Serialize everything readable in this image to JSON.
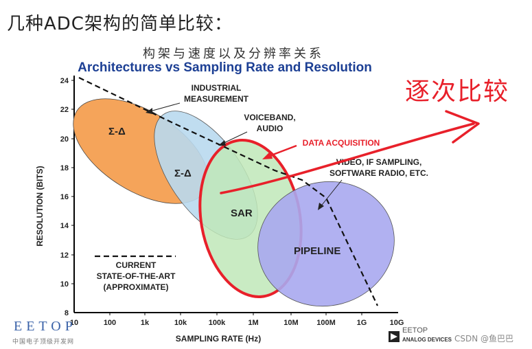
{
  "heading": "几种ADC架构的简单比较：",
  "subtitle_zh": "构架与速度以及分辨率关系",
  "title_en": "Architectures vs Sampling Rate and Resolution",
  "annotation_zh": "逐次比较",
  "axes": {
    "y_label": "RESOLUTION (BITS)",
    "x_label": "SAMPLING RATE (Hz)",
    "y_ticks": [
      "8",
      "10",
      "12",
      "14",
      "16",
      "18",
      "20",
      "22",
      "24"
    ],
    "x_ticks": [
      "10",
      "100",
      "1k",
      "10k",
      "100k",
      "1M",
      "10M",
      "100M",
      "1G",
      "10G"
    ]
  },
  "regions": {
    "sigma_delta_1": "Σ-Δ",
    "sigma_delta_2": "Σ-Δ",
    "sar": "SAR",
    "pipeline": "PIPELINE"
  },
  "callouts": {
    "industrial": [
      "INDUSTRIAL",
      "MEASUREMENT"
    ],
    "voiceband": [
      "VOICEBAND,",
      "AUDIO"
    ],
    "data_acq": "DATA ACQUISITION",
    "video": [
      "VIDEO, IF SAMPLING,",
      "SOFTWARE RADIO, ETC."
    ]
  },
  "legend": [
    "CURRENT",
    "STATE-OF-THE-ART",
    "(APPROXIMATE)"
  ],
  "logos": {
    "eetop": "EETOP",
    "eetop_sub": "中国电子顶级开发网",
    "eetop2": "EETOP",
    "adi": "ANALOG DEVICES"
  },
  "watermark": "CSDN @鱼巴巴",
  "colors": {
    "title_blue": "#1c3f94",
    "sigma1": "#f5a45a",
    "sigma2": "#b9d9ee",
    "sar": "#bfe8b8",
    "pipeline": "#a9a8f0",
    "red": "#e8202a"
  }
}
